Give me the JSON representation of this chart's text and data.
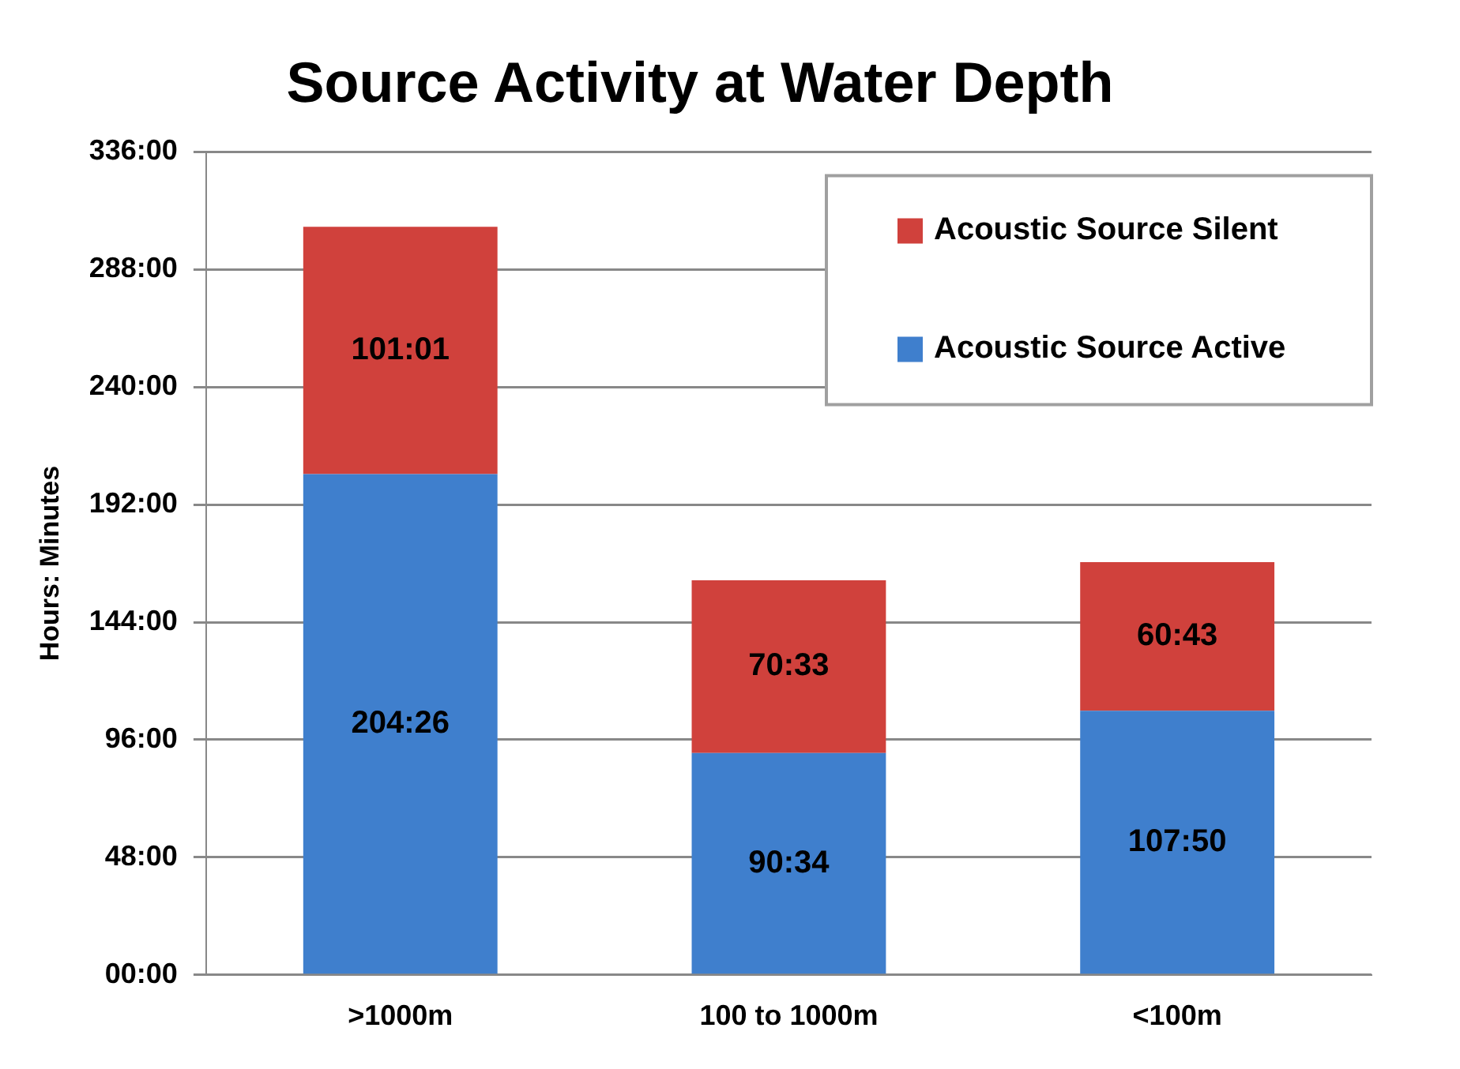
{
  "chart_data": {
    "type": "bar",
    "title": "Source Activity at Water Depth",
    "ylabel": "Hours: Minutes",
    "categories": [
      ">1000m",
      "100 to 1000m",
      "<100m"
    ],
    "stacked": true,
    "series": [
      {
        "name": "Acoustic Source Active",
        "color": "#3f7fcd",
        "values": [
          204.43,
          90.57,
          107.83
        ],
        "value_labels": [
          "204:26",
          "90:34",
          "107:50"
        ]
      },
      {
        "name": "Acoustic Source Silent",
        "color": "#d0413c",
        "values": [
          101.02,
          70.55,
          60.72
        ],
        "value_labels": [
          "101:01",
          "70:33",
          "60:43"
        ]
      }
    ],
    "ylim": [
      0,
      336
    ],
    "yticks": [
      {
        "value": 0,
        "label": "00:00"
      },
      {
        "value": 48,
        "label": "48:00"
      },
      {
        "value": 96,
        "label": "96:00"
      },
      {
        "value": 144,
        "label": "144:00"
      },
      {
        "value": 192,
        "label": "192:00"
      },
      {
        "value": 240,
        "label": "240:00"
      },
      {
        "value": 288,
        "label": "288:00"
      },
      {
        "value": 336,
        "label": "336:00"
      }
    ],
    "grid": "y",
    "legend": "top right"
  }
}
